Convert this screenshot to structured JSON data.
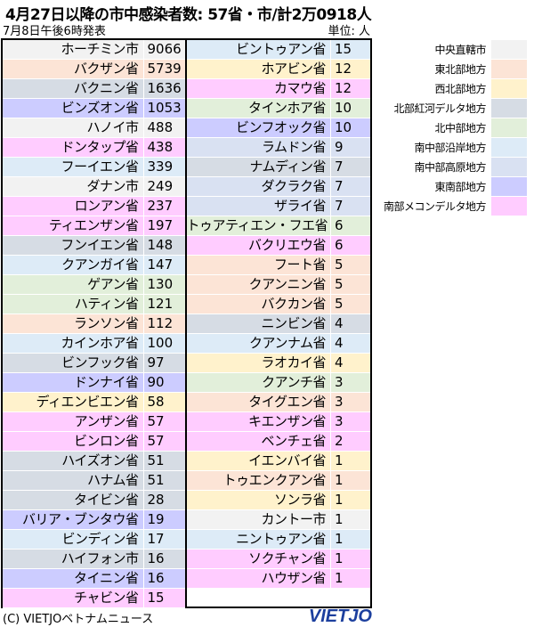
{
  "title": "4月27日以降の市中感染者数: 57省・市/計2万0918人",
  "subtitle": "7月8日午後6時発表",
  "unit": "単位: 人",
  "regions": {
    "c": {
      "label": "中央直轄市",
      "color": "#f2f2f2"
    },
    "ne": {
      "label": "東北部地方",
      "color": "#fce4d6"
    },
    "nw": {
      "label": "西北部地方",
      "color": "#fff2cc"
    },
    "rr": {
      "label": "北部紅河デルタ地方",
      "color": "#d6dce4"
    },
    "nc": {
      "label": "北中部地方",
      "color": "#e2efda"
    },
    "scc": {
      "label": "南中部沿岸地方",
      "color": "#ddebf7"
    },
    "ch": {
      "label": "南中部高原地方",
      "color": "#d9e1f2"
    },
    "se": {
      "label": "東南部地方",
      "color": "#ccccff"
    },
    "mk": {
      "label": "南部メコンデルタ地方",
      "color": "#ffccff"
    }
  },
  "legend_order": [
    "c",
    "ne",
    "nw",
    "rr",
    "nc",
    "scc",
    "ch",
    "se",
    "mk"
  ],
  "left_rows": [
    {
      "name": "ホーチミン市",
      "value": "9066",
      "region": "c"
    },
    {
      "name": "バクザン省",
      "value": "5739",
      "region": "ne"
    },
    {
      "name": "バクニン省",
      "value": "1636",
      "region": "rr"
    },
    {
      "name": "ビンズオン省",
      "value": "1053",
      "region": "se"
    },
    {
      "name": "ハノイ市",
      "value": "488",
      "region": "c"
    },
    {
      "name": "ドンタップ省",
      "value": "438",
      "region": "mk"
    },
    {
      "name": "フーイエン省",
      "value": "339",
      "region": "scc"
    },
    {
      "name": "ダナン市",
      "value": "249",
      "region": "c"
    },
    {
      "name": "ロンアン省",
      "value": "237",
      "region": "mk"
    },
    {
      "name": "ティエンザン省",
      "value": "197",
      "region": "mk"
    },
    {
      "name": "フンイエン省",
      "value": "148",
      "region": "rr"
    },
    {
      "name": "クアンガイ省",
      "value": "147",
      "region": "scc"
    },
    {
      "name": "ゲアン省",
      "value": "130",
      "region": "nc"
    },
    {
      "name": "ハティン省",
      "value": "121",
      "region": "nc"
    },
    {
      "name": "ランソン省",
      "value": "112",
      "region": "ne"
    },
    {
      "name": "カインホア省",
      "value": "100",
      "region": "scc"
    },
    {
      "name": "ビンフック省",
      "value": "97",
      "region": "rr"
    },
    {
      "name": "ドンナイ省",
      "value": "90",
      "region": "se"
    },
    {
      "name": "ディエンビエン省",
      "value": "58",
      "region": "nw"
    },
    {
      "name": "アンザン省",
      "value": "57",
      "region": "mk"
    },
    {
      "name": "ビンロン省",
      "value": "57",
      "region": "mk"
    },
    {
      "name": "ハイズオン省",
      "value": "51",
      "region": "rr"
    },
    {
      "name": "ハナム省",
      "value": "51",
      "region": "rr"
    },
    {
      "name": "タイビン省",
      "value": "28",
      "region": "rr"
    },
    {
      "name": "バリア・ブンタウ省",
      "value": "19",
      "region": "se"
    },
    {
      "name": "ビンディン省",
      "value": "17",
      "region": "scc"
    },
    {
      "name": "ハイフォン市",
      "value": "16",
      "region": "rr"
    },
    {
      "name": "タイニン省",
      "value": "16",
      "region": "se"
    },
    {
      "name": "チャビン省",
      "value": "15",
      "region": "mk"
    }
  ],
  "right_rows": [
    {
      "name": "ビントゥアン省",
      "value": "15",
      "region": "scc"
    },
    {
      "name": "ホアビン省",
      "value": "12",
      "region": "nw"
    },
    {
      "name": "カマウ省",
      "value": "12",
      "region": "mk"
    },
    {
      "name": "タインホア省",
      "value": "10",
      "region": "nc"
    },
    {
      "name": "ビンフオック省",
      "value": "10",
      "region": "se"
    },
    {
      "name": "ラムドン省",
      "value": "9",
      "region": "ch"
    },
    {
      "name": "ナムディン省",
      "value": "7",
      "region": "rr"
    },
    {
      "name": "ダクラク省",
      "value": "7",
      "region": "ch"
    },
    {
      "name": "ザライ省",
      "value": "7",
      "region": "ch"
    },
    {
      "name": "トゥアティエン・フエ省",
      "value": "6",
      "region": "nc"
    },
    {
      "name": "バクリエウ省",
      "value": "6",
      "region": "mk"
    },
    {
      "name": "フート省",
      "value": "5",
      "region": "ne"
    },
    {
      "name": "クアンニン省",
      "value": "5",
      "region": "ne"
    },
    {
      "name": "バクカン省",
      "value": "5",
      "region": "ne"
    },
    {
      "name": "ニンビン省",
      "value": "4",
      "region": "rr"
    },
    {
      "name": "クアンナム省",
      "value": "4",
      "region": "scc"
    },
    {
      "name": "ラオカイ省",
      "value": "4",
      "region": "nw"
    },
    {
      "name": "クアンチ省",
      "value": "3",
      "region": "nc"
    },
    {
      "name": "タイグエン省",
      "value": "3",
      "region": "ne"
    },
    {
      "name": "キエンザン省",
      "value": "3",
      "region": "mk"
    },
    {
      "name": "ベンチェ省",
      "value": "2",
      "region": "mk"
    },
    {
      "name": "イエンバイ省",
      "value": "1",
      "region": "nw"
    },
    {
      "name": "トゥエンクアン省",
      "value": "1",
      "region": "ne"
    },
    {
      "name": "ソンラ省",
      "value": "1",
      "region": "nw"
    },
    {
      "name": "カントー市",
      "value": "1",
      "region": "c"
    },
    {
      "name": "ニントゥアン省",
      "value": "1",
      "region": "scc"
    },
    {
      "name": "ソクチャン省",
      "value": "1",
      "region": "mk"
    },
    {
      "name": "ハウザン省",
      "value": "1",
      "region": "mk"
    }
  ],
  "footer": "(C) VIETJOベトナムニュース",
  "logo": "VIETJO"
}
